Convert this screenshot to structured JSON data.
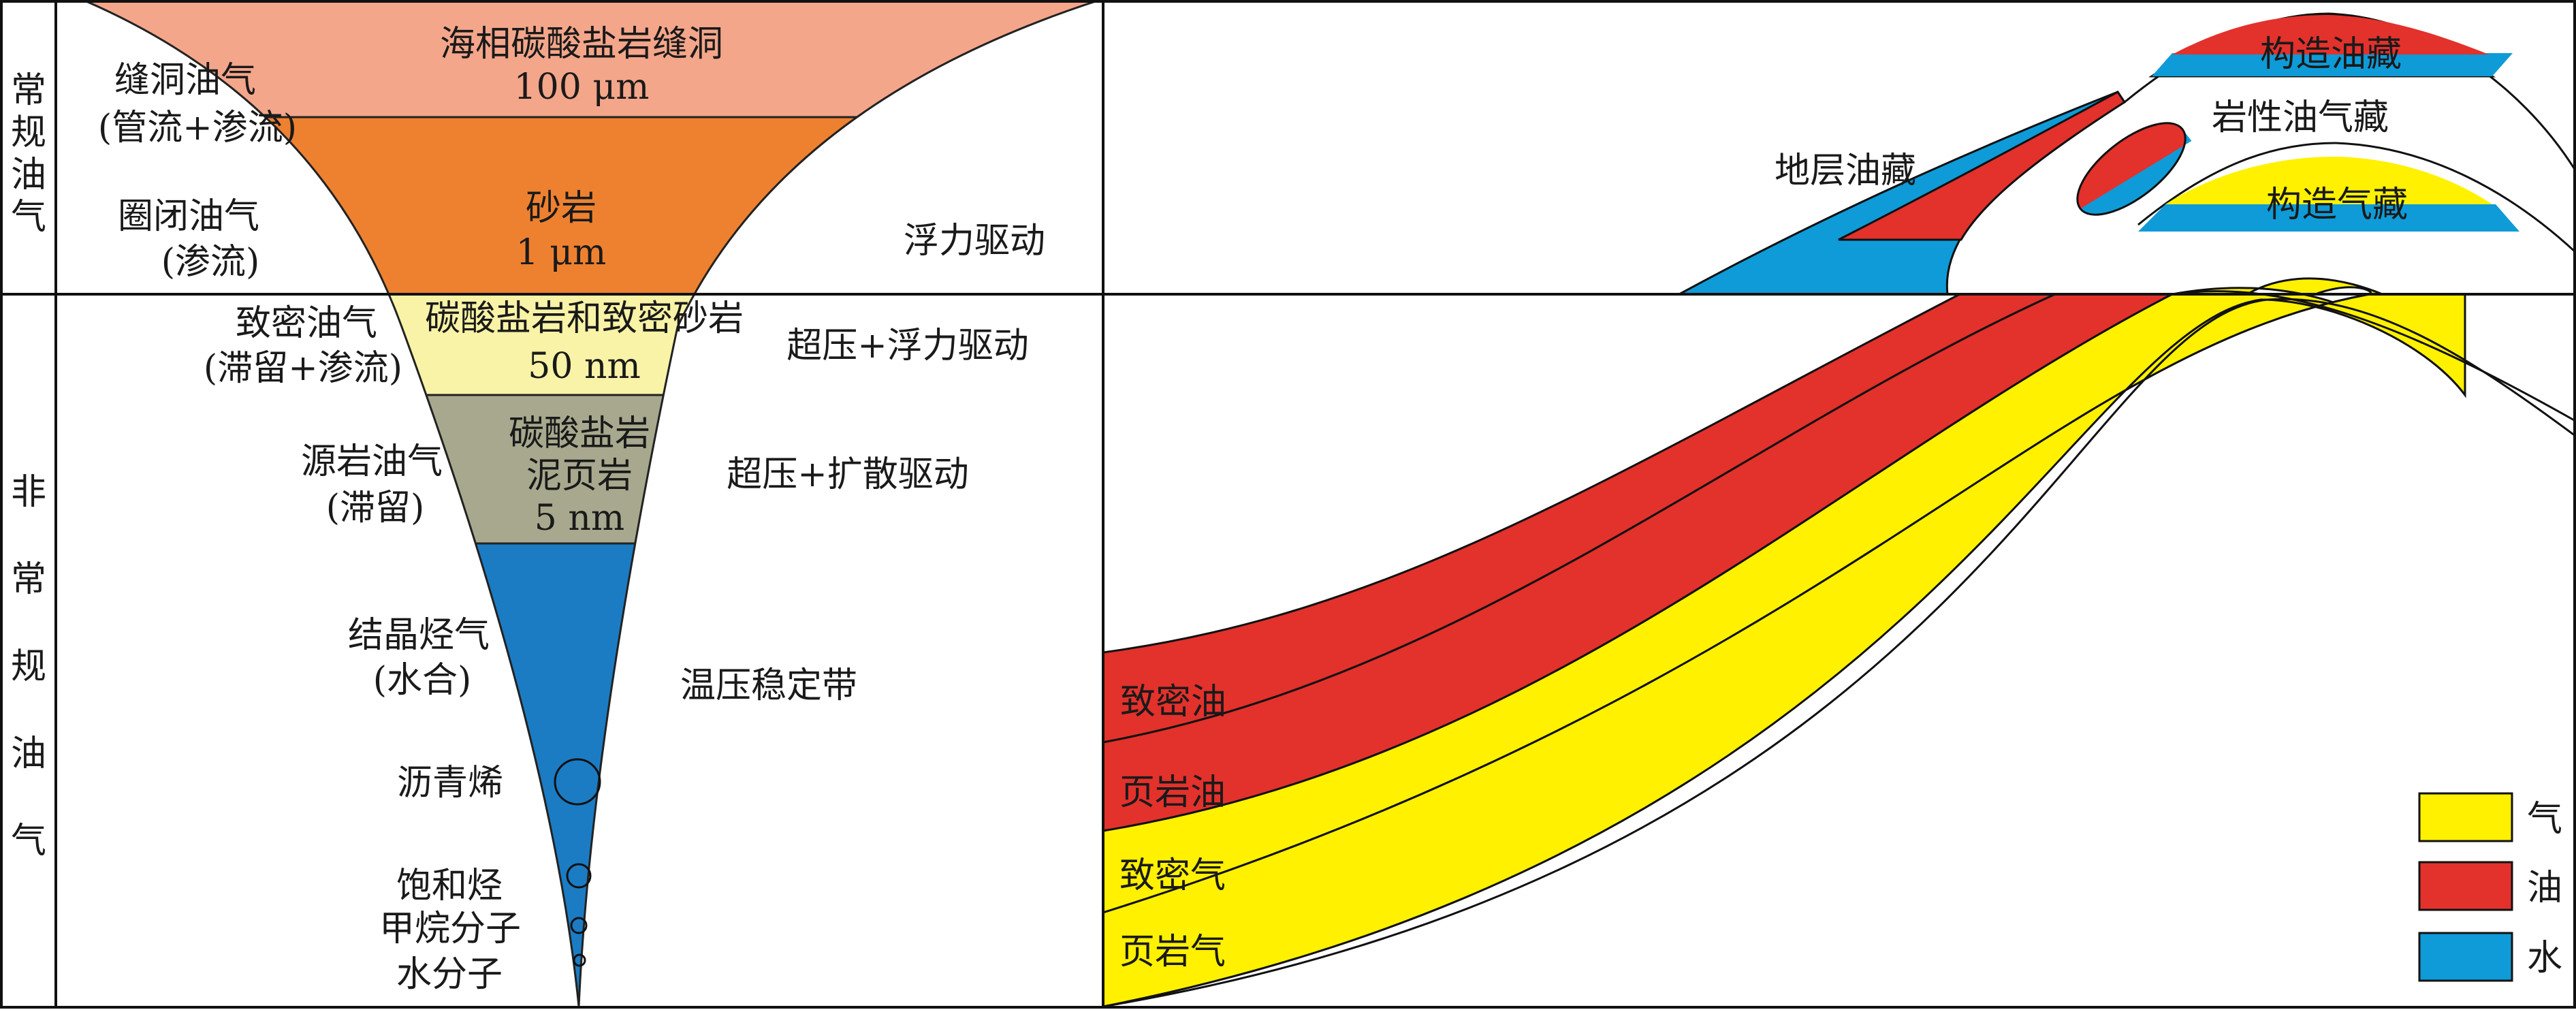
{
  "side_labels": {
    "conventional": [
      "常",
      "规",
      "油",
      "气"
    ],
    "unconventional": [
      "非",
      "常",
      "规",
      "油",
      "气"
    ]
  },
  "funnel": {
    "layers": [
      {
        "name": "海相碳酸盐岩缝洞",
        "size": "100 μm",
        "color": "#F4A68A"
      },
      {
        "name": "砂岩",
        "size": "1 μm",
        "color": "#EE8130"
      },
      {
        "name": "碳酸盐岩和致密砂岩",
        "size": "50 nm",
        "color": "#F8F3A6"
      },
      {
        "name_lines": [
          "碳酸盐岩",
          "泥页岩"
        ],
        "size": "5 nm",
        "color": "#A8A88E"
      },
      {
        "color": "#1B7CC4"
      }
    ],
    "left_labels": [
      {
        "lines": [
          "缝洞油气",
          "(管流+渗流)"
        ]
      },
      {
        "lines": [
          "圈闭油气",
          "(渗流)"
        ]
      },
      {
        "lines": [
          "致密油气",
          "(滞留+渗流)"
        ]
      },
      {
        "lines": [
          "源岩油气",
          "(滞留)"
        ]
      },
      {
        "lines": [
          "结晶烃气",
          "(水合)"
        ]
      },
      {
        "lines": [
          "沥青烯"
        ]
      },
      {
        "lines": [
          "饱和烃",
          "甲烷分子",
          "水分子"
        ]
      }
    ],
    "right_labels": [
      "浮力驱动",
      "超压+浮力驱动",
      "超压+扩散驱动",
      "温压稳定带"
    ]
  },
  "reservoirs": {
    "conventional": [
      "地层油藏",
      "构造油藏",
      "岩性油气藏",
      "构造气藏"
    ],
    "unconventional": [
      "致密油",
      "页岩油",
      "致密气",
      "页岩气"
    ]
  },
  "legend": [
    {
      "label": "气",
      "color": "#FFF100"
    },
    {
      "label": "油",
      "color": "#E3312C"
    },
    {
      "label": "水",
      "color": "#0E9BD8"
    }
  ]
}
